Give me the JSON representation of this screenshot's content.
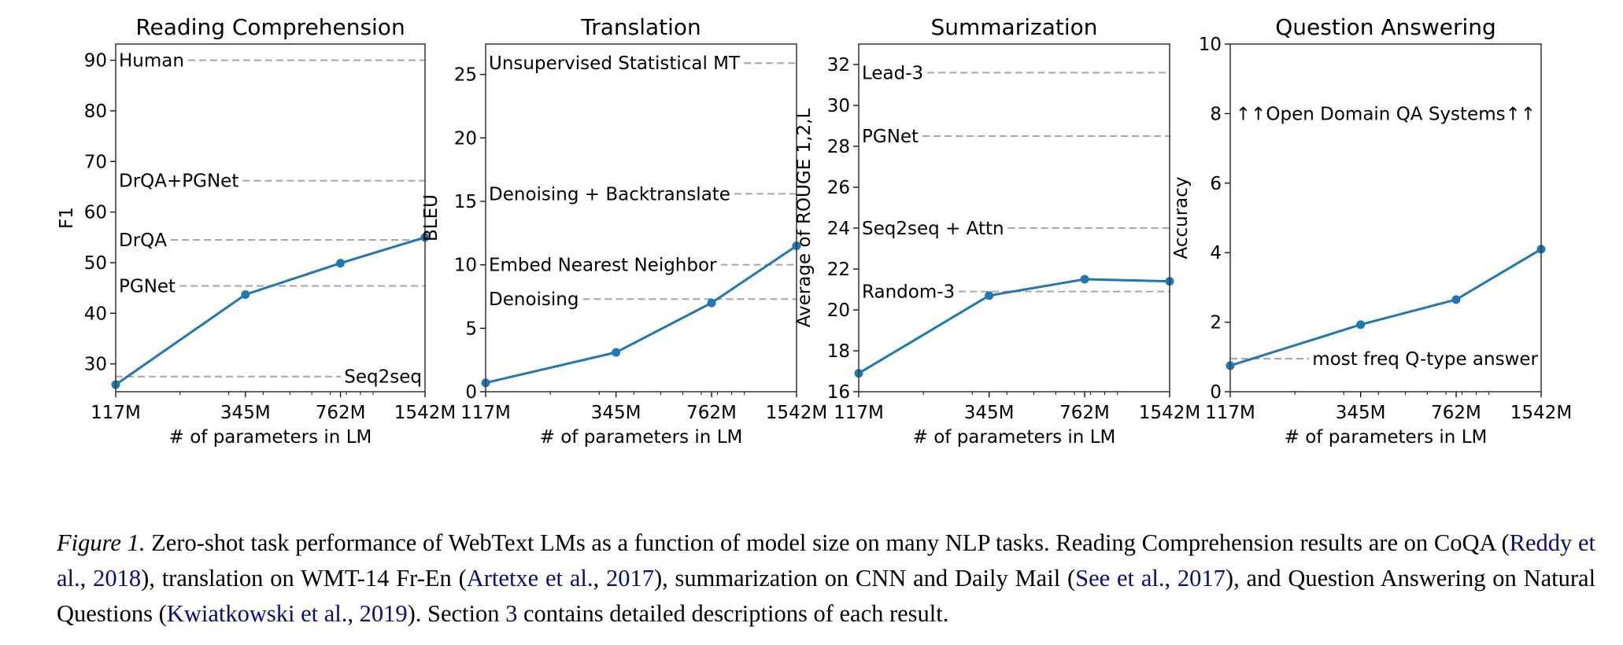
{
  "colors": {
    "series": "#1f77b4",
    "reference": "#a6a6a6",
    "link": "#0a0a80"
  },
  "chart_data": [
    {
      "type": "line",
      "title": "Reading Comprehension",
      "xlabel": "# of parameters in LM",
      "ylabel": "F1",
      "x_scale": "log",
      "x": [
        117,
        345,
        762,
        1542
      ],
      "x_tick_labels": [
        "117M",
        "345M",
        "762M",
        "1542M"
      ],
      "xlim": [
        117,
        1542
      ],
      "ylim": [
        24.5,
        93.2
      ],
      "y_ticks": [
        30,
        40,
        50,
        60,
        70,
        80,
        90
      ],
      "values": [
        25.9,
        43.7,
        49.9,
        55.0
      ],
      "references": [
        {
          "label": "Human",
          "value": 90.0,
          "text_side": "left"
        },
        {
          "label": "DrQA+PGNet",
          "value": 66.2,
          "text_side": "left"
        },
        {
          "label": "DrQA",
          "value": 54.5,
          "text_side": "left"
        },
        {
          "label": "PGNet",
          "value": 45.4,
          "text_side": "left"
        },
        {
          "label": "Seq2seq",
          "value": 27.5,
          "text_side": "right"
        }
      ]
    },
    {
      "type": "line",
      "title": "Translation",
      "xlabel": "# of parameters in LM",
      "ylabel": "BLEU",
      "x_scale": "log",
      "x": [
        117,
        345,
        762,
        1542
      ],
      "x_tick_labels": [
        "117M",
        "345M",
        "762M",
        "1542M"
      ],
      "xlim": [
        117,
        1542
      ],
      "ylim": [
        0,
        27.4
      ],
      "y_ticks": [
        0,
        5,
        10,
        15,
        20,
        25
      ],
      "values": [
        0.7,
        3.1,
        7.0,
        11.5
      ],
      "references": [
        {
          "label": "Unsupervised Statistical MT",
          "value": 25.9,
          "text_side": "left"
        },
        {
          "label": "Denoising + Backtranslate",
          "value": 15.6,
          "text_side": "left"
        },
        {
          "label": "Embed Nearest Neighbor",
          "value": 10.0,
          "text_side": "left"
        },
        {
          "label": "Denoising",
          "value": 7.3,
          "text_side": "left"
        }
      ]
    },
    {
      "type": "line",
      "title": "Summarization",
      "xlabel": "# of parameters in LM",
      "ylabel": "Average of ROUGE 1,2,L",
      "x_scale": "log",
      "x": [
        117,
        345,
        762,
        1542
      ],
      "x_tick_labels": [
        "117M",
        "345M",
        "762M",
        "1542M"
      ],
      "xlim": [
        117,
        1542
      ],
      "ylim": [
        16,
        33
      ],
      "y_ticks": [
        16,
        18,
        20,
        22,
        24,
        26,
        28,
        30,
        32
      ],
      "values": [
        16.9,
        20.7,
        21.5,
        21.4
      ],
      "references": [
        {
          "label": "Lead-3",
          "value": 31.6,
          "text_side": "left"
        },
        {
          "label": "PGNet",
          "value": 28.5,
          "text_side": "left"
        },
        {
          "label": "Seq2seq + Attn",
          "value": 24.0,
          "text_side": "left"
        },
        {
          "label": "Random-3",
          "value": 20.9,
          "text_side": "left"
        }
      ]
    },
    {
      "type": "line",
      "title": "Question Answering",
      "xlabel": "# of parameters in LM",
      "ylabel": "Accuracy",
      "x_scale": "log",
      "x": [
        117,
        345,
        762,
        1542
      ],
      "x_tick_labels": [
        "117M",
        "345M",
        "762M",
        "1542M"
      ],
      "xlim": [
        117,
        1542
      ],
      "ylim": [
        0,
        10
      ],
      "y_ticks": [
        0,
        2,
        4,
        6,
        8,
        10
      ],
      "values": [
        0.75,
        1.93,
        2.65,
        4.1
      ],
      "references": [
        {
          "label": "most freq Q-type answer",
          "value": 0.95,
          "text_side": "right"
        },
        {
          "label": "↑↑Open Domain QA Systems↑↑",
          "value": 8.0,
          "text_side": "text-only"
        }
      ]
    }
  ],
  "caption": {
    "label": "Figure 1.",
    "segments": [
      {
        "text": " Zero-shot task performance of WebText LMs as a function of model size on many NLP tasks. Reading Comprehension results are on CoQA (",
        "link": false
      },
      {
        "text": "Reddy et al.",
        "link": true
      },
      {
        "text": ", ",
        "link": false
      },
      {
        "text": "2018",
        "link": true
      },
      {
        "text": "), translation on WMT-14 Fr-En (",
        "link": false
      },
      {
        "text": "Artetxe et al.",
        "link": true
      },
      {
        "text": ", ",
        "link": false
      },
      {
        "text": "2017",
        "link": true
      },
      {
        "text": "), summarization on CNN and Daily Mail (",
        "link": false
      },
      {
        "text": "See et al.",
        "link": true
      },
      {
        "text": ", ",
        "link": false
      },
      {
        "text": "2017",
        "link": true
      },
      {
        "text": "), and Question Answering on Natural Questions (",
        "link": false
      },
      {
        "text": "Kwiatkowski et al.",
        "link": true
      },
      {
        "text": ", ",
        "link": false
      },
      {
        "text": "2019",
        "link": true
      },
      {
        "text": "). Section ",
        "link": false
      },
      {
        "text": "3",
        "link": true
      },
      {
        "text": " contains detailed descriptions of each result.",
        "link": false
      }
    ]
  }
}
